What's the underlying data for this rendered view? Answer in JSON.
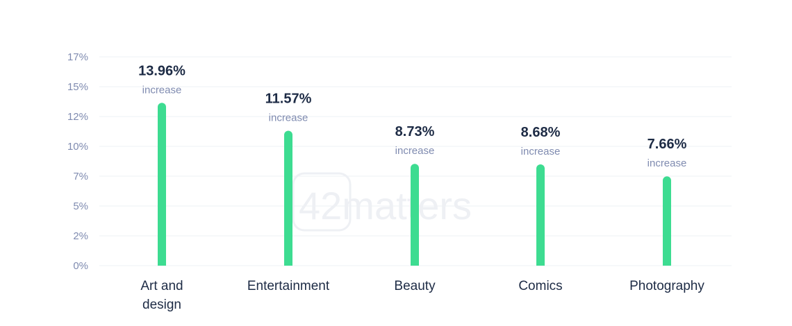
{
  "chart_data": {
    "type": "bar",
    "title": "",
    "xlabel": "",
    "ylabel": "",
    "categories": [
      [
        "Art and",
        "design"
      ],
      [
        "Entertainment"
      ],
      [
        "Beauty"
      ],
      [
        "Comics"
      ],
      [
        "Photography"
      ]
    ],
    "values": [
      13.96,
      11.57,
      8.73,
      8.68,
      7.66
    ],
    "value_labels": [
      "13.96%",
      "11.57%",
      "8.73%",
      "8.68%",
      "7.66%"
    ],
    "value_sublabel": "increase",
    "y_ticks": [
      "0%",
      "2%",
      "5%",
      "7%",
      "10%",
      "12%",
      "15%",
      "17%"
    ],
    "ylim": [
      0,
      17.9
    ],
    "grid": true,
    "bar_color": "#3ddc91",
    "watermark": "42matters"
  }
}
